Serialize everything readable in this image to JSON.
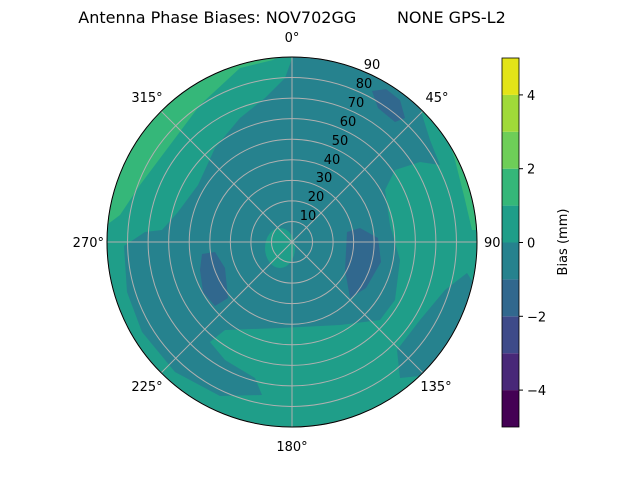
{
  "chart_data": {
    "type": "contour",
    "projection": "polar",
    "title": "Antenna Phase Biases: NOV702GG        NONE GPS-L2",
    "theta_zero": "top",
    "theta_direction": "clockwise",
    "theta_ticks": [
      "0°",
      "45°",
      "90°",
      "135°",
      "180°",
      "225°",
      "270°",
      "315°"
    ],
    "r_ticks": [
      "10",
      "20",
      "30",
      "40",
      "50",
      "60",
      "70",
      "80",
      "90"
    ],
    "rlim": [
      0,
      90
    ],
    "grid": true,
    "levels": [
      -5,
      -4,
      -3,
      -2,
      -1,
      0,
      1,
      2,
      3,
      4,
      5
    ],
    "level_colors": [
      "#440154",
      "#482878",
      "#3e4a89",
      "#31688e",
      "#26828e",
      "#1f9e89",
      "#35b779",
      "#6ece58",
      "#a0da39",
      "#e3e418"
    ],
    "colormap": "viridis",
    "colorbar": {
      "label": "Bias (mm)",
      "ticks": [
        "−4",
        "−2",
        "0",
        "2",
        "4"
      ],
      "tick_values": [
        -4,
        -2,
        0,
        2,
        4
      ],
      "range": [
        -5,
        5
      ],
      "placement": "right"
    }
  }
}
